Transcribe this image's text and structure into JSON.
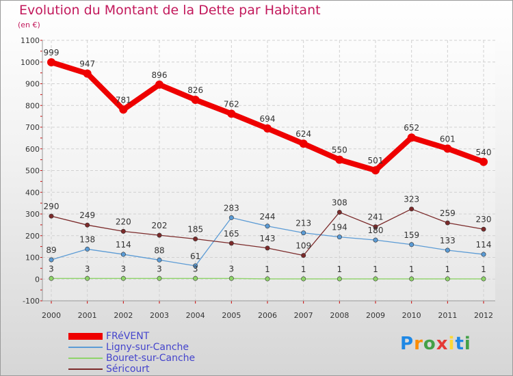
{
  "chart_data": {
    "type": "line",
    "title": "Evolution du Montant de la Dette par Habitant",
    "subtitle": "(en €)",
    "xlabel": "",
    "ylabel": "",
    "ylim": [
      -100,
      1100
    ],
    "yticks": [
      -100,
      0,
      100,
      200,
      300,
      400,
      500,
      600,
      700,
      800,
      900,
      1000,
      1100
    ],
    "x": [
      "2000",
      "2001",
      "2002",
      "2003",
      "2004",
      "2005",
      "2006",
      "2007",
      "2008",
      "2009",
      "2010",
      "2011",
      "2012"
    ],
    "grid": true,
    "legend_position": "bottom-left",
    "series": [
      {
        "name": "FRéVENT",
        "color": "#ee0000",
        "values": [
          999,
          947,
          781,
          896,
          826,
          762,
          694,
          624,
          550,
          501,
          652,
          601,
          540
        ]
      },
      {
        "name": "Ligny-sur-Canche",
        "color": "#5b9bd5",
        "values": [
          89,
          138,
          114,
          88,
          61,
          283,
          244,
          213,
          194,
          180,
          159,
          133,
          114
        ]
      },
      {
        "name": "Bouret-sur-Canche",
        "color": "#8fd46a",
        "values": [
          3,
          3,
          3,
          3,
          3,
          3,
          1,
          1,
          1,
          1,
          1,
          1,
          1
        ]
      },
      {
        "name": "Séricourt",
        "color": "#7b2a2a",
        "values": [
          290,
          249,
          220,
          202,
          185,
          165,
          143,
          109,
          308,
          241,
          323,
          259,
          230
        ]
      }
    ]
  },
  "brand": {
    "letters": [
      "P",
      "r",
      "o",
      "x",
      "i",
      "t",
      "i"
    ],
    "colors": [
      "#1e88e5",
      "#fb8c00",
      "#43a047",
      "#e53935",
      "#fdd835",
      "#1e88e5",
      "#43a047"
    ]
  }
}
